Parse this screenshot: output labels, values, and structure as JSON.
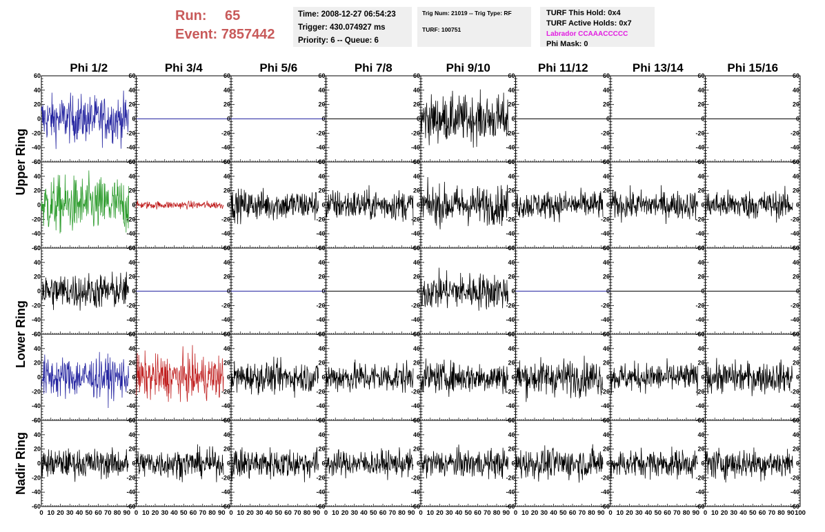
{
  "header": {
    "run_label": "Run:",
    "run_value": "65",
    "event_label": "Event:",
    "event_value": "7857442",
    "time": "Time: 2008-12-27 06:54:23",
    "trigger": "Trigger: 430.074927 ms",
    "priority": "Priority: 6 -- Queue: 6",
    "trig_num": "Trig Num: 21019 -- Trig Type: RF",
    "turf": "TURF: 100751",
    "turf_this_hold": "TURF This Hold: 0x4",
    "turf_active_holds": "TURF Active Holds: 0x7",
    "labrador": "Labrador CCAAACCCCC",
    "phi_mask": "Phi Mask: 0"
  },
  "colors": {
    "blue": "#2424a0",
    "green": "#2a9a2a",
    "red": "#c02020",
    "black": "#000000",
    "labrador": "#e21ce2",
    "run_text": "#c85a5a"
  },
  "chart_data": {
    "type": "line",
    "columns": [
      "Phi 1/2",
      "Phi 3/4",
      "Phi 5/6",
      "Phi 7/8",
      "Phi 9/10",
      "Phi 11/12",
      "Phi 13/14",
      "Phi 15/16"
    ],
    "row_groups": [
      "Upper Ring",
      "Lower Ring",
      "Nadir Ring"
    ],
    "xlim": [
      0,
      100
    ],
    "ylim": [
      -60,
      60
    ],
    "x_ticks": [
      "0",
      "10",
      "20",
      "30",
      "40",
      "50",
      "60",
      "70",
      "80",
      "90",
      "100"
    ],
    "y_ticks": [
      "60",
      "40",
      "20",
      "0",
      "-20",
      "-40",
      "-60"
    ],
    "panels": [
      [
        {
          "color": "blue",
          "amp": 18,
          "len": 92
        },
        {
          "color": "blue",
          "amp": 0,
          "len": 100
        },
        {
          "color": "blue",
          "amp": 0,
          "len": 100
        },
        {
          "color": "black",
          "amp": 0,
          "len": 100
        },
        {
          "color": "black",
          "amp": 18,
          "len": 92
        },
        {
          "color": "black",
          "amp": 0,
          "len": 100
        },
        {
          "color": "black",
          "amp": 0,
          "len": 100
        },
        {
          "color": "black",
          "amp": 0,
          "len": 100
        }
      ],
      [
        {
          "color": "green",
          "amp": 22,
          "len": 92
        },
        {
          "color": "red",
          "amp": 3,
          "len": 92
        },
        {
          "color": "black",
          "amp": 12,
          "len": 92
        },
        {
          "color": "black",
          "amp": 12,
          "len": 92
        },
        {
          "color": "black",
          "amp": 15,
          "len": 92
        },
        {
          "color": "black",
          "amp": 11,
          "len": 92
        },
        {
          "color": "black",
          "amp": 11,
          "len": 92
        },
        {
          "color": "black",
          "amp": 11,
          "len": 92
        }
      ],
      [
        {
          "color": "black",
          "amp": 14,
          "len": 92
        },
        {
          "color": "blue",
          "amp": 0,
          "len": 100
        },
        {
          "color": "blue",
          "amp": 0,
          "len": 100
        },
        {
          "color": "black",
          "amp": 0,
          "len": 100
        },
        {
          "color": "black",
          "amp": 14,
          "len": 92
        },
        {
          "color": "blue",
          "amp": 0,
          "len": 100
        },
        {
          "color": "black",
          "amp": 0,
          "len": 100
        },
        {
          "color": "black",
          "amp": 0,
          "len": 100
        }
      ],
      [
        {
          "color": "blue",
          "amp": 16,
          "len": 92
        },
        {
          "color": "red",
          "amp": 17,
          "len": 92
        },
        {
          "color": "black",
          "amp": 12,
          "len": 92
        },
        {
          "color": "black",
          "amp": 12,
          "len": 92
        },
        {
          "color": "black",
          "amp": 12,
          "len": 92
        },
        {
          "color": "black",
          "amp": 14,
          "len": 92
        },
        {
          "color": "black",
          "amp": 11,
          "len": 92
        },
        {
          "color": "black",
          "amp": 12,
          "len": 92
        }
      ],
      [
        {
          "color": "black",
          "amp": 11,
          "len": 92
        },
        {
          "color": "black",
          "amp": 11,
          "len": 92
        },
        {
          "color": "black",
          "amp": 12,
          "len": 92
        },
        {
          "color": "black",
          "amp": 10,
          "len": 92
        },
        {
          "color": "black",
          "amp": 11,
          "len": 92
        },
        {
          "color": "black",
          "amp": 12,
          "len": 92
        },
        {
          "color": "black",
          "amp": 11,
          "len": 92
        },
        {
          "color": "black",
          "amp": 12,
          "len": 92
        }
      ]
    ]
  }
}
